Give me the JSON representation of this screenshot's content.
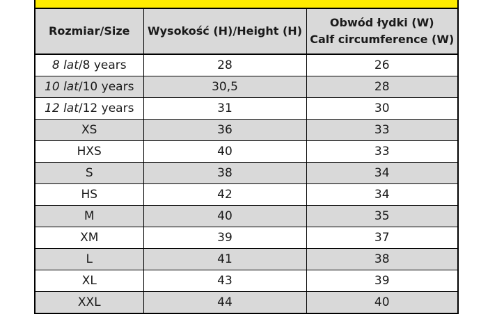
{
  "header": {
    "col_size": "Rozmiar/Size",
    "col_height": "Wysokość (H)/Height (H)",
    "col_calf_line1": "Obwód łydki (W)",
    "col_calf_line2": "Calf circumference (W)"
  },
  "rows": [
    {
      "size_pl": "8 lat",
      "size_en": "/8 years",
      "height": "28",
      "calf": "26"
    },
    {
      "size_pl": "10 lat",
      "size_en": "/10  years",
      "height": "30,5",
      "calf": "28"
    },
    {
      "size_pl": "12 lat",
      "size_en": "/12  years",
      "height": "31",
      "calf": "30"
    },
    {
      "size": "XS",
      "height": "36",
      "calf": "33"
    },
    {
      "size": "HXS",
      "height": "40",
      "calf": "33"
    },
    {
      "size": "S",
      "height": "38",
      "calf": "34"
    },
    {
      "size": "HS",
      "height": "42",
      "calf": "34"
    },
    {
      "size": "M",
      "height": "40",
      "calf": "35"
    },
    {
      "size": "XM",
      "height": "39",
      "calf": "37"
    },
    {
      "size": "L",
      "height": "41",
      "calf": "38"
    },
    {
      "size": "XL",
      "height": "43",
      "calf": "39"
    },
    {
      "size": "XXL",
      "height": "44",
      "calf": "40"
    }
  ],
  "colors": {
    "accent_band": "#ffeb00",
    "shade": "#d9d9d9"
  }
}
